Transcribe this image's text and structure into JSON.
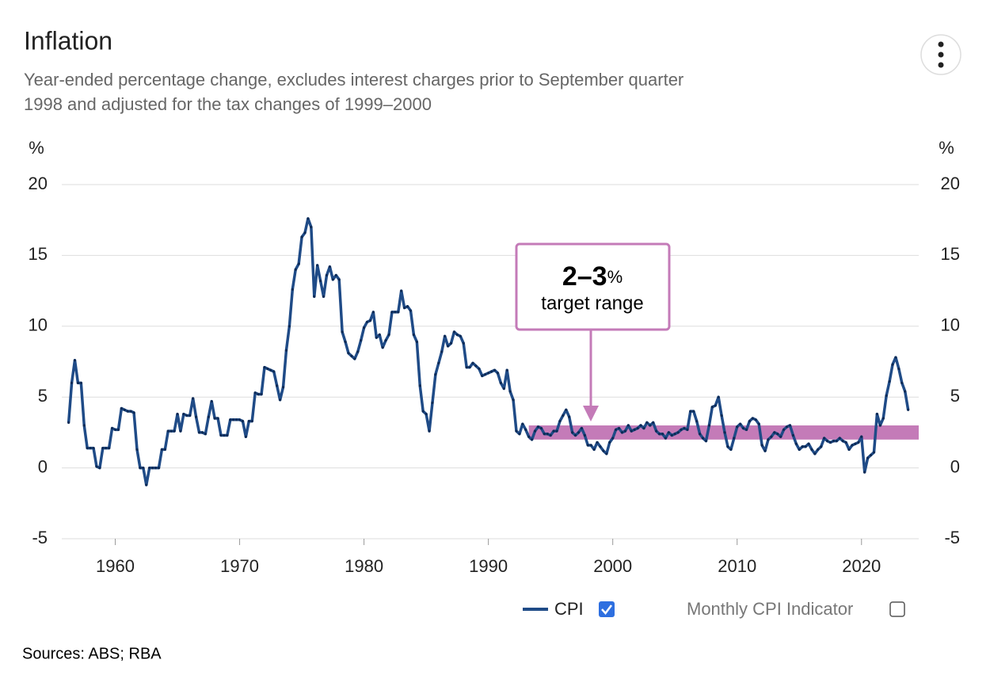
{
  "chart_data": {
    "type": "line",
    "title": "Inflation",
    "subtitle": [
      "Year-ended percentage change, excludes interest charges prior to September quarter",
      "1998 and adjusted for the tax changes of 1999–2000"
    ],
    "y_label": "%",
    "y2_label": "%",
    "xlim": [
      1955.7,
      2024.6
    ],
    "xticks": [
      1960,
      1970,
      1980,
      1990,
      2000,
      2010,
      2020
    ],
    "ylim": [
      -5,
      20
    ],
    "yticks": [
      -5,
      0,
      5,
      10,
      15,
      20
    ],
    "y2lim": [
      -5,
      20
    ],
    "y2ticks": [
      -5,
      0,
      5,
      10,
      15,
      20
    ],
    "grid": true,
    "x": [
      1956.25,
      1956.5,
      1956.75,
      1957,
      1957.25,
      1957.5,
      1957.75,
      1958,
      1958.25,
      1958.5,
      1958.75,
      1959,
      1959.25,
      1959.5,
      1959.75,
      1960,
      1960.25,
      1960.5,
      1960.75,
      1961,
      1961.25,
      1961.5,
      1961.75,
      1962,
      1962.25,
      1962.5,
      1962.75,
      1963,
      1963.25,
      1963.5,
      1963.75,
      1964,
      1964.25,
      1964.5,
      1964.75,
      1965,
      1965.25,
      1965.5,
      1965.75,
      1966,
      1966.25,
      1966.5,
      1966.75,
      1967,
      1967.25,
      1967.5,
      1967.75,
      1968,
      1968.25,
      1968.5,
      1968.75,
      1969,
      1969.25,
      1969.5,
      1969.75,
      1970,
      1970.25,
      1970.5,
      1970.75,
      1971,
      1971.25,
      1971.5,
      1971.75,
      1972,
      1972.25,
      1972.5,
      1972.75,
      1973,
      1973.25,
      1973.5,
      1973.75,
      1974,
      1974.25,
      1974.5,
      1974.75,
      1975,
      1975.25,
      1975.5,
      1975.75,
      1976,
      1976.25,
      1976.5,
      1976.75,
      1977,
      1977.25,
      1977.5,
      1977.75,
      1978,
      1978.25,
      1978.5,
      1978.75,
      1979,
      1979.25,
      1979.5,
      1979.75,
      1980,
      1980.25,
      1980.5,
      1980.75,
      1981,
      1981.25,
      1981.5,
      1981.75,
      1982,
      1982.25,
      1982.5,
      1982.75,
      1983,
      1983.25,
      1983.5,
      1983.75,
      1984,
      1984.25,
      1984.5,
      1984.75,
      1985,
      1985.25,
      1985.5,
      1985.75,
      1986,
      1986.25,
      1986.5,
      1986.75,
      1987,
      1987.25,
      1987.5,
      1987.75,
      1988,
      1988.25,
      1988.5,
      1988.75,
      1989,
      1989.25,
      1989.5,
      1989.75,
      1990,
      1990.25,
      1990.5,
      1990.75,
      1991,
      1991.25,
      1991.5,
      1991.75,
      1992,
      1992.25,
      1992.5,
      1992.75,
      1993,
      1993.25,
      1993.5,
      1993.75,
      1994,
      1994.25,
      1994.5,
      1994.75,
      1995,
      1995.25,
      1995.5,
      1995.75,
      1996,
      1996.25,
      1996.5,
      1996.75,
      1997,
      1997.25,
      1997.5,
      1997.75,
      1998,
      1998.25,
      1998.5,
      1998.75,
      1999,
      1999.25,
      1999.5,
      1999.75,
      2000,
      2000.25,
      2000.5,
      2000.75,
      2001,
      2001.25,
      2001.5,
      2001.75,
      2002,
      2002.25,
      2002.5,
      2002.75,
      2003,
      2003.25,
      2003.5,
      2003.75,
      2004,
      2004.25,
      2004.5,
      2004.75,
      2005,
      2005.25,
      2005.5,
      2005.75,
      2006,
      2006.25,
      2006.5,
      2006.75,
      2007,
      2007.25,
      2007.5,
      2007.75,
      2008,
      2008.25,
      2008.5,
      2008.75,
      2009,
      2009.25,
      2009.5,
      2009.75,
      2010,
      2010.25,
      2010.5,
      2010.75,
      2011,
      2011.25,
      2011.5,
      2011.75,
      2012,
      2012.25,
      2012.5,
      2012.75,
      2013,
      2013.25,
      2013.5,
      2013.75,
      2014,
      2014.25,
      2014.5,
      2014.75,
      2015,
      2015.25,
      2015.5,
      2015.75,
      2016,
      2016.25,
      2016.5,
      2016.75,
      2017,
      2017.25,
      2017.5,
      2017.75,
      2018,
      2018.25,
      2018.5,
      2018.75,
      2019,
      2019.25,
      2019.5,
      2019.75,
      2020,
      2020.25,
      2020.5,
      2020.75,
      2021,
      2021.25,
      2021.5,
      2021.75,
      2022,
      2022.25,
      2022.5,
      2022.75,
      2023,
      2023.25,
      2023.5,
      2023.75
    ],
    "series": [
      {
        "name": "CPI",
        "color": "#1f4b87",
        "values": [
          3.2,
          6.0,
          7.6,
          6.0,
          6.0,
          3.0,
          1.4,
          1.4,
          1.4,
          0.1,
          0.0,
          1.4,
          1.4,
          1.4,
          2.8,
          2.7,
          2.7,
          4.2,
          4.1,
          4.0,
          4.0,
          3.9,
          1.3,
          0.0,
          0.0,
          -1.2,
          0.0,
          0.0,
          0.0,
          0.0,
          1.3,
          1.3,
          2.6,
          2.6,
          2.6,
          3.8,
          2.6,
          3.8,
          3.7,
          3.7,
          4.9,
          3.6,
          2.5,
          2.5,
          2.4,
          3.6,
          4.7,
          3.5,
          3.5,
          2.3,
          2.3,
          2.3,
          3.4,
          3.4,
          3.4,
          3.4,
          3.3,
          2.2,
          3.3,
          3.3,
          5.3,
          5.2,
          5.2,
          7.1,
          7.0,
          6.9,
          6.8,
          5.8,
          4.8,
          5.7,
          8.3,
          10.0,
          12.6,
          14.0,
          14.4,
          16.3,
          16.6,
          17.6,
          17.0,
          12.1,
          14.3,
          13.2,
          12.1,
          13.6,
          14.2,
          13.3,
          13.6,
          13.3,
          9.6,
          8.9,
          8.1,
          7.9,
          7.7,
          8.2,
          9.0,
          9.9,
          10.3,
          10.4,
          11.0,
          9.2,
          9.4,
          8.5,
          9.0,
          9.4,
          11.0,
          11.0,
          11.0,
          12.5,
          11.3,
          11.4,
          11.1,
          9.4,
          8.9,
          5.8,
          4.0,
          3.8,
          2.6,
          4.6,
          6.6,
          7.4,
          8.2,
          9.3,
          8.6,
          8.8,
          9.6,
          9.4,
          9.3,
          8.8,
          7.1,
          7.1,
          7.4,
          7.2,
          7.0,
          6.5,
          6.6,
          6.7,
          6.8,
          6.9,
          6.7,
          6.0,
          5.6,
          6.9,
          5.4,
          4.8,
          2.6,
          2.4,
          3.1,
          2.7,
          2.2,
          2.0,
          2.6,
          2.9,
          2.8,
          2.4,
          2.4,
          2.3,
          2.6,
          2.6,
          3.3,
          3.7,
          4.1,
          3.6,
          2.5,
          2.3,
          2.5,
          2.8,
          2.3,
          1.6,
          1.6,
          1.3,
          1.8,
          1.5,
          1.2,
          1.0,
          1.8,
          2.1,
          2.7,
          2.8,
          2.5,
          2.6,
          3.0,
          2.6,
          2.7,
          2.8,
          3.0,
          2.8,
          3.2,
          3.0,
          3.2,
          2.6,
          2.4,
          2.4,
          2.1,
          2.5,
          2.3,
          2.4,
          2.5,
          2.7,
          2.8,
          2.7,
          4.0,
          4.0,
          3.3,
          2.4,
          2.1,
          1.9,
          3.0,
          4.3,
          4.4,
          5.0,
          3.7,
          2.5,
          1.5,
          1.3,
          2.1,
          2.9,
          3.1,
          2.8,
          2.7,
          3.3,
          3.5,
          3.4,
          3.1,
          1.6,
          1.2,
          2.0,
          2.2,
          2.5,
          2.4,
          2.2,
          2.7,
          2.9,
          3.0,
          2.3,
          1.7,
          1.3,
          1.5,
          1.5,
          1.7,
          1.3,
          1.0,
          1.3,
          1.5,
          2.1,
          1.9,
          1.8,
          1.9,
          1.9,
          2.1,
          1.9,
          1.8,
          1.3,
          1.6,
          1.7,
          1.8,
          2.2,
          -0.3,
          0.7,
          0.9,
          1.1,
          3.8,
          3.0,
          3.5,
          5.1,
          6.1,
          7.3,
          7.8,
          7.0,
          6.0,
          5.4,
          4.1
        ]
      }
    ],
    "target_range": {
      "from": 2,
      "to": 3,
      "start": 1993.25,
      "color": "#c47bb8",
      "label": "2–3",
      "unit": "%",
      "text": "target range"
    }
  },
  "legend_extra": "Monthly CPI Indicator",
  "source": "Sources: ABS; RBA"
}
